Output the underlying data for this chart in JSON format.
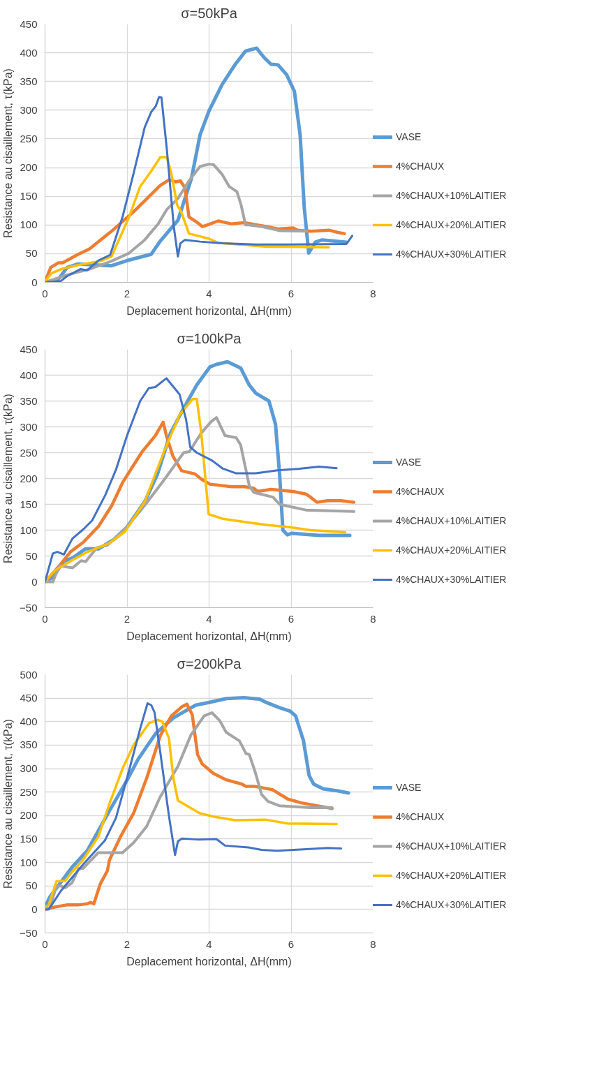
{
  "chart_data": [
    {
      "type": "line",
      "title": "σ=50kPa",
      "xlabel": "Deplacement horizontal, ΔH(mm)",
      "ylabel": "Resistance au cisaillement, τ(kPa)",
      "xlim": [
        0,
        8
      ],
      "xticks": [
        0,
        2,
        4,
        6,
        8
      ],
      "ylim": [
        0,
        450
      ],
      "yticks": [
        0,
        50,
        100,
        150,
        200,
        250,
        300,
        350,
        400,
        450
      ],
      "grid": true,
      "legend": "right",
      "line_style": "solid",
      "marker": "none",
      "series": [
        {
          "name": "VASE",
          "color": "#5b9bd5",
          "x": [
            0,
            0.32,
            0.54,
            0.81,
            1.62,
            2.0,
            2.59,
            2.81,
            3.24,
            3.57,
            3.78,
            4.0,
            4.32,
            4.65,
            4.89,
            5.16,
            5.35,
            5.51,
            5.68,
            5.89,
            6.08,
            6.22,
            6.32,
            6.43,
            6.59,
            6.76,
            7.03,
            7.35
          ],
          "values": [
            0,
            5,
            26,
            32,
            29,
            38,
            49,
            72,
            108,
            181,
            257,
            299,
            345,
            381,
            403,
            408,
            391,
            380,
            379,
            362,
            333,
            257,
            131,
            51,
            70,
            74,
            72,
            70
          ]
        },
        {
          "name": "4%CHAUX",
          "color": "#ed7d31",
          "x": [
            0,
            0.14,
            0.32,
            0.43,
            0.81,
            1.08,
            1.62,
            2.16,
            2.81,
            3.03,
            3.19,
            3.3,
            3.41,
            3.51,
            3.68,
            3.84,
            4.0,
            4.22,
            4.54,
            4.86,
            5.41,
            5.68,
            6.05,
            6.16,
            6.49,
            6.92,
            7.14,
            7.3
          ],
          "values": [
            1,
            26,
            34,
            34,
            49,
            58,
            89,
            123,
            169,
            179,
            175,
            177,
            165,
            114,
            106,
            97,
            101,
            107,
            102,
            104,
            97,
            93,
            95,
            91,
            89,
            91,
            87,
            85
          ]
        },
        {
          "name": "4%CHAUX+10%LAITIER",
          "color": "#a5a5a5",
          "x": [
            0,
            0.54,
            1.08,
            1.62,
            2.05,
            2.43,
            2.76,
            2.97,
            3.24,
            3.51,
            3.78,
            4.0,
            4.11,
            4.32,
            4.49,
            4.68,
            4.78,
            4.89,
            4.97,
            5.3,
            5.73,
            6.38
          ],
          "values": [
            0,
            13,
            23,
            37,
            51,
            74,
            102,
            127,
            146,
            177,
            202,
            206,
            205,
            188,
            167,
            158,
            135,
            100,
            100,
            97,
            90,
            89
          ]
        },
        {
          "name": "4%CHAUX+20%LAITIER",
          "color": "#ffc000",
          "x": [
            0,
            0.16,
            0.43,
            0.81,
            1.35,
            1.62,
            2.05,
            2.32,
            2.59,
            2.81,
            2.97,
            3.08,
            3.22,
            3.32,
            3.51,
            3.73,
            4.0,
            4.22,
            5.41,
            5.95,
            6.92
          ],
          "values": [
            2,
            16,
            24,
            30,
            37,
            45,
            114,
            167,
            194,
            218,
            218,
            190,
            135,
            123,
            85,
            81,
            76,
            69,
            62,
            62,
            61
          ]
        },
        {
          "name": "4%CHAUX+30%LAITIER",
          "color": "#4472c4",
          "x": [
            0,
            0.38,
            0.54,
            0.86,
            1.03,
            1.3,
            1.59,
            1.89,
            2.16,
            2.43,
            2.59,
            2.7,
            2.78,
            2.84,
            2.97,
            3.14,
            3.24,
            3.3,
            3.41,
            3.78,
            4.32,
            5.14,
            5.95,
            7.35,
            7.49
          ],
          "values": [
            0,
            2,
            11,
            23,
            21,
            38,
            48,
            114,
            190,
            270,
            297,
            307,
            323,
            322,
            232,
            97,
            45,
            68,
            74,
            71,
            68,
            66,
            66,
            67,
            81
          ]
        }
      ]
    },
    {
      "type": "line",
      "title": "σ=100kPa",
      "xlabel": "Deplacement horizontal, ΔH(mm)",
      "ylabel": "Resistance au cisaillement, τ(kPa)",
      "xlim": [
        0,
        8
      ],
      "xticks": [
        0,
        2,
        4,
        6,
        8
      ],
      "ylim": [
        -50,
        450
      ],
      "yticks": [
        -50,
        0,
        50,
        100,
        150,
        200,
        250,
        300,
        350,
        400,
        450
      ],
      "grid": true,
      "legend": "right",
      "line_style": "solid",
      "marker": "none",
      "series": [
        {
          "name": "VASE",
          "color": "#5b9bd5",
          "x": [
            0,
            0.19,
            0.46,
            0.67,
            0.99,
            1.31,
            1.68,
            2.0,
            2.43,
            2.74,
            3.06,
            3.38,
            3.7,
            4.02,
            4.18,
            4.45,
            4.77,
            4.98,
            5.14,
            5.46,
            5.62,
            5.72,
            5.8,
            5.91,
            6.02,
            6.68,
            7.43
          ],
          "values": [
            0,
            9,
            40,
            46,
            64,
            64,
            82,
            106,
            155,
            208,
            288,
            336,
            381,
            416,
            421,
            426,
            414,
            381,
            365,
            350,
            305,
            208,
            100,
            91,
            94,
            90,
            90
          ]
        },
        {
          "name": "4%CHAUX",
          "color": "#ed7d31",
          "x": [
            0,
            0.35,
            0.62,
            0.94,
            1.31,
            1.63,
            1.89,
            2.16,
            2.37,
            2.69,
            2.88,
            2.96,
            3.12,
            3.33,
            3.65,
            3.81,
            4.02,
            4.55,
            4.87,
            5.09,
            5.19,
            5.51,
            6.04,
            6.36,
            6.47,
            6.63,
            6.89,
            7.21,
            7.53
          ],
          "values": [
            0,
            31,
            58,
            77,
            108,
            148,
            192,
            226,
            252,
            283,
            309,
            283,
            243,
            215,
            209,
            199,
            189,
            184,
            184,
            181,
            175,
            179,
            175,
            170,
            164,
            154,
            157,
            157,
            154
          ]
        },
        {
          "name": "4%CHAUX+10%LAITIER",
          "color": "#a5a5a5",
          "x": [
            0,
            0.19,
            0.35,
            0.67,
            0.88,
            0.99,
            1.26,
            1.52,
            2.0,
            2.43,
            2.9,
            3.38,
            3.52,
            3.81,
            4.05,
            4.18,
            4.39,
            4.66,
            4.77,
            4.98,
            5.09,
            5.56,
            5.72,
            6.36,
            7.53
          ],
          "values": [
            0,
            0,
            31,
            27,
            41,
            39,
            66,
            71,
            106,
            148,
            197,
            250,
            252,
            288,
            310,
            318,
            283,
            279,
            265,
            186,
            173,
            164,
            150,
            139,
            136
          ]
        },
        {
          "name": "4%CHAUX+20%LAITIER",
          "color": "#ffc000",
          "x": [
            0,
            0.24,
            0.62,
            1.04,
            1.57,
            1.95,
            2.43,
            2.9,
            3.28,
            3.6,
            3.7,
            3.81,
            3.99,
            4.34,
            4.87,
            5.4,
            5.94,
            6.47,
            7.32
          ],
          "values": [
            0,
            22,
            40,
            58,
            75,
            97,
            155,
            252,
            323,
            354,
            354,
            288,
            131,
            122,
            116,
            110,
            106,
            100,
            96
          ]
        },
        {
          "name": "4%CHAUX+30%LAITIER",
          "color": "#4472c4",
          "x": [
            0,
            0.19,
            0.3,
            0.46,
            0.67,
            0.94,
            1.15,
            1.47,
            1.73,
            2.0,
            2.32,
            2.53,
            2.69,
            2.96,
            3.28,
            3.44,
            3.54,
            3.7,
            4.07,
            4.34,
            4.66,
            5.14,
            5.67,
            6.2,
            6.68,
            7.11
          ],
          "values": [
            0,
            55,
            58,
            53,
            84,
            102,
            119,
            168,
            217,
            283,
            350,
            375,
            377,
            394,
            363,
            314,
            261,
            250,
            235,
            219,
            210,
            210,
            216,
            219,
            223,
            220
          ]
        }
      ]
    },
    {
      "type": "line",
      "title": "σ=200kPa",
      "xlabel": "Deplacement horizontal, ΔH(mm)",
      "ylabel": "Resistance au cisaillement, τ(kPa)",
      "xlim": [
        0,
        8
      ],
      "xticks": [
        0,
        2,
        4,
        6,
        8
      ],
      "ylim": [
        -50,
        500
      ],
      "yticks": [
        -50,
        0,
        50,
        100,
        150,
        200,
        250,
        300,
        350,
        400,
        450,
        500
      ],
      "grid": true,
      "legend": "right",
      "line_style": "solid",
      "marker": "none",
      "series": [
        {
          "name": "VASE",
          "color": "#5b9bd5",
          "x": [
            0,
            0.12,
            0.66,
            1.03,
            1.57,
            2.0,
            2.27,
            2.7,
            3.13,
            3.67,
            4.0,
            4.42,
            4.85,
            5.23,
            5.39,
            5.71,
            5.98,
            6.11,
            6.3,
            6.44,
            6.55,
            6.78,
            7.11,
            7.4
          ],
          "values": [
            5,
            27,
            90,
            125,
            210,
            275,
            320,
            375,
            408,
            435,
            441,
            449,
            451,
            448,
            441,
            430,
            422,
            412,
            360,
            285,
            267,
            257,
            253,
            248
          ]
        },
        {
          "name": "4%CHAUX",
          "color": "#ed7d31",
          "x": [
            0,
            0.23,
            0.55,
            0.82,
            1.03,
            1.11,
            1.19,
            1.35,
            1.52,
            1.57,
            1.84,
            2.16,
            2.48,
            2.81,
            3.08,
            3.34,
            3.46,
            3.59,
            3.72,
            3.83,
            4.1,
            4.42,
            4.8,
            4.9,
            5.12,
            5.55,
            5.92,
            6.25,
            7.0
          ],
          "values": [
            0,
            5,
            10,
            10,
            12,
            15,
            12,
            55,
            82,
            105,
            155,
            205,
            280,
            370,
            412,
            432,
            437,
            415,
            330,
            310,
            290,
            276,
            267,
            262,
            262,
            255,
            235,
            227,
            215
          ]
        },
        {
          "name": "4%CHAUX+10%LAITIER",
          "color": "#a5a5a5",
          "x": [
            0,
            0.12,
            0.28,
            0.39,
            0.49,
            0.66,
            0.82,
            0.92,
            1.3,
            1.89,
            2.16,
            2.48,
            2.81,
            3.24,
            3.56,
            3.88,
            4.07,
            4.26,
            4.42,
            4.74,
            4.9,
            4.98,
            5.12,
            5.28,
            5.44,
            5.71,
            6.46,
            7.0
          ],
          "values": [
            0,
            5,
            50,
            50,
            46,
            57,
            87,
            87,
            121,
            121,
            142,
            177,
            240,
            305,
            372,
            412,
            419,
            402,
            377,
            359,
            332,
            330,
            294,
            245,
            230,
            221,
            217,
            217
          ]
        },
        {
          "name": "4%CHAUX+20%LAITIER",
          "color": "#ffc000",
          "x": [
            0,
            0.09,
            0.28,
            0.49,
            0.66,
            0.92,
            1.3,
            1.57,
            1.89,
            2.16,
            2.54,
            2.75,
            2.86,
            3.02,
            3.13,
            3.24,
            3.77,
            4.15,
            4.63,
            5.39,
            5.92,
            7.11
          ],
          "values": [
            5,
            10,
            60,
            61,
            80,
            105,
            155,
            225,
            300,
            350,
            397,
            404,
            400,
            365,
            280,
            232,
            205,
            197,
            190,
            191,
            183,
            182
          ]
        },
        {
          "name": "4%CHAUX+30%LAITIER",
          "color": "#4472c4",
          "x": [
            0,
            0.09,
            0.39,
            0.92,
            1.46,
            1.73,
            2.0,
            2.32,
            2.5,
            2.59,
            2.67,
            2.81,
            3.02,
            3.17,
            3.24,
            3.34,
            3.72,
            4.18,
            4.39,
            4.96,
            5.28,
            5.66,
            6.3,
            6.89,
            7.22
          ],
          "values": [
            0,
            0,
            40,
            95,
            147,
            195,
            280,
            385,
            439,
            435,
            420,
            335,
            200,
            116,
            145,
            151,
            149,
            150,
            136,
            132,
            127,
            125,
            128,
            131,
            130
          ]
        }
      ]
    }
  ]
}
